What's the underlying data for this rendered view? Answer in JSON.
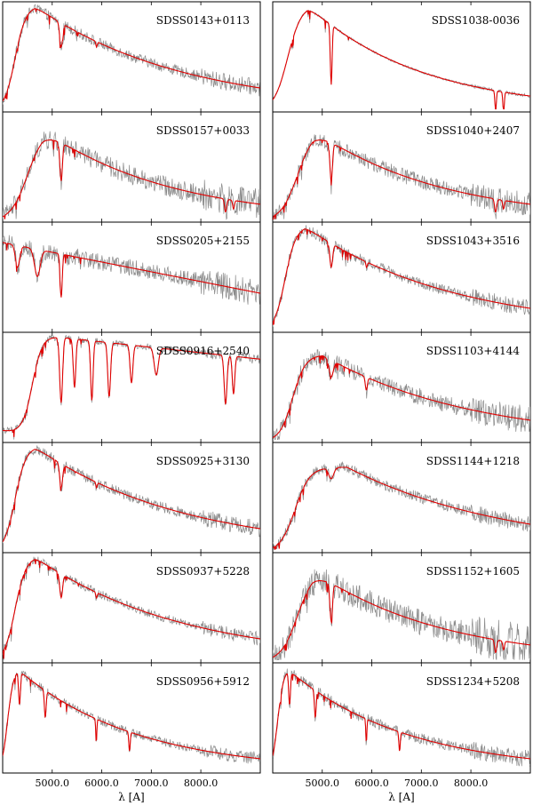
{
  "figure": {
    "xlabel": "λ [A]",
    "xticks": [
      "5000.0",
      "6000.0",
      "7000.0",
      "8000.0"
    ],
    "colors": {
      "observed": "#8a8a8a",
      "model": "#e00000",
      "frame": "#000000"
    }
  },
  "chart_data": [
    {
      "type": "line",
      "name": "SDSS0143+0113",
      "column": 0,
      "row": 0,
      "xlim": [
        4000,
        9200
      ],
      "ylim": [
        0,
        1
      ],
      "observed_noise": 0.05,
      "template": "warm"
    },
    {
      "type": "line",
      "name": "SDSS0157+0033",
      "column": 0,
      "row": 1,
      "xlim": [
        4000,
        9200
      ],
      "ylim": [
        0,
        1
      ],
      "observed_noise": 0.09,
      "template": "cool"
    },
    {
      "type": "line",
      "name": "SDSS0205+2155",
      "column": 0,
      "row": 2,
      "xlim": [
        4000,
        9200
      ],
      "ylim": [
        0,
        1
      ],
      "observed_noise": 0.08,
      "template": "flat"
    },
    {
      "type": "line",
      "name": "SDSS0916+2540",
      "column": 0,
      "row": 3,
      "xlim": [
        4000,
        9200
      ],
      "ylim": [
        0,
        1
      ],
      "observed_noise": 0.03,
      "template": "mtype"
    },
    {
      "type": "line",
      "name": "SDSS0925+3130",
      "column": 0,
      "row": 4,
      "xlim": [
        4000,
        9200
      ],
      "ylim": [
        0,
        1
      ],
      "observed_noise": 0.05,
      "template": "warm"
    },
    {
      "type": "line",
      "name": "SDSS0937+5228",
      "column": 0,
      "row": 5,
      "xlim": [
        4000,
        9200
      ],
      "ylim": [
        0,
        1
      ],
      "observed_noise": 0.04,
      "template": "warm"
    },
    {
      "type": "line",
      "name": "SDSS0956+5912",
      "column": 0,
      "row": 6,
      "xlim": [
        4000,
        9200
      ],
      "ylim": [
        0,
        1
      ],
      "observed_noise": 0.04,
      "template": "hot"
    },
    {
      "type": "line",
      "name": "SDSS1038-0036",
      "column": 1,
      "row": 0,
      "xlim": [
        4000,
        9200
      ],
      "ylim": [
        0,
        1
      ],
      "observed_noise": 0.01,
      "template": "smooth"
    },
    {
      "type": "line",
      "name": "SDSS1040+2407",
      "column": 1,
      "row": 1,
      "xlim": [
        4000,
        9200
      ],
      "ylim": [
        0,
        1
      ],
      "observed_noise": 0.07,
      "template": "cool"
    },
    {
      "type": "line",
      "name": "SDSS1043+3516",
      "column": 1,
      "row": 2,
      "xlim": [
        4000,
        9200
      ],
      "ylim": [
        0,
        1
      ],
      "observed_noise": 0.05,
      "template": "warm"
    },
    {
      "type": "line",
      "name": "SDSS1103+4144",
      "column": 1,
      "row": 3,
      "xlim": [
        4000,
        9200
      ],
      "ylim": [
        0,
        1
      ],
      "observed_noise": 0.08,
      "template": "broad"
    },
    {
      "type": "line",
      "name": "SDSS1144+1218",
      "column": 1,
      "row": 4,
      "xlim": [
        4000,
        9200
      ],
      "ylim": [
        0,
        1
      ],
      "observed_noise": 0.05,
      "template": "broad2"
    },
    {
      "type": "line",
      "name": "SDSS1152+1605",
      "column": 1,
      "row": 5,
      "xlim": [
        4000,
        9200
      ],
      "ylim": [
        0,
        1
      ],
      "observed_noise": 0.12,
      "template": "cool"
    },
    {
      "type": "line",
      "name": "SDSS1234+5208",
      "column": 1,
      "row": 6,
      "xlim": [
        4000,
        9200
      ],
      "ylim": [
        0,
        1
      ],
      "observed_noise": 0.05,
      "template": "hot"
    }
  ]
}
